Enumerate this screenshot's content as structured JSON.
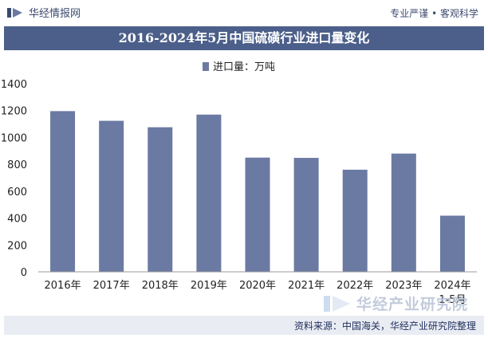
{
  "header": {
    "brand": "华经情报网",
    "tagline": "专业严谨 • 客观科学",
    "title": "2016-2024年5月中国硫磺行业进口量变化"
  },
  "footer": {
    "source": "资料来源：中国海关，华经产业研究院整理"
  },
  "watermark": {
    "text": "华经产业研究院"
  },
  "colors": {
    "bar": "#6b7aa3",
    "title_bg": "#4c5f8a",
    "accent": "#3a4a6e"
  },
  "chart_data": {
    "type": "bar",
    "categories": [
      "2016年",
      "2017年",
      "2018年",
      "2019年",
      "2020年",
      "2021年",
      "2022年",
      "2023年",
      "2024年\n1-5月"
    ],
    "series": [
      {
        "name": "进口量：万吨",
        "values": [
          1196,
          1124,
          1076,
          1170,
          850,
          848,
          760,
          880,
          418
        ]
      }
    ],
    "ylim": [
      0,
      1400
    ],
    "yticks": [
      0,
      200,
      400,
      600,
      800,
      1000,
      1200,
      1400
    ],
    "grid": false,
    "legend": "top-center"
  }
}
